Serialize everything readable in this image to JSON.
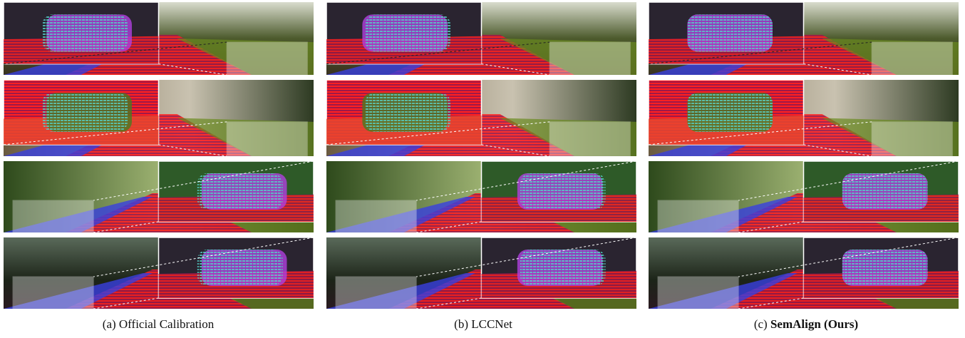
{
  "figure": {
    "captions": [
      {
        "label": "(a)",
        "text": "Official Calibration"
      },
      {
        "label": "(b)",
        "text": "LCCNet"
      },
      {
        "label": "(c)",
        "text": "SemAlign (Ours)"
      }
    ]
  }
}
